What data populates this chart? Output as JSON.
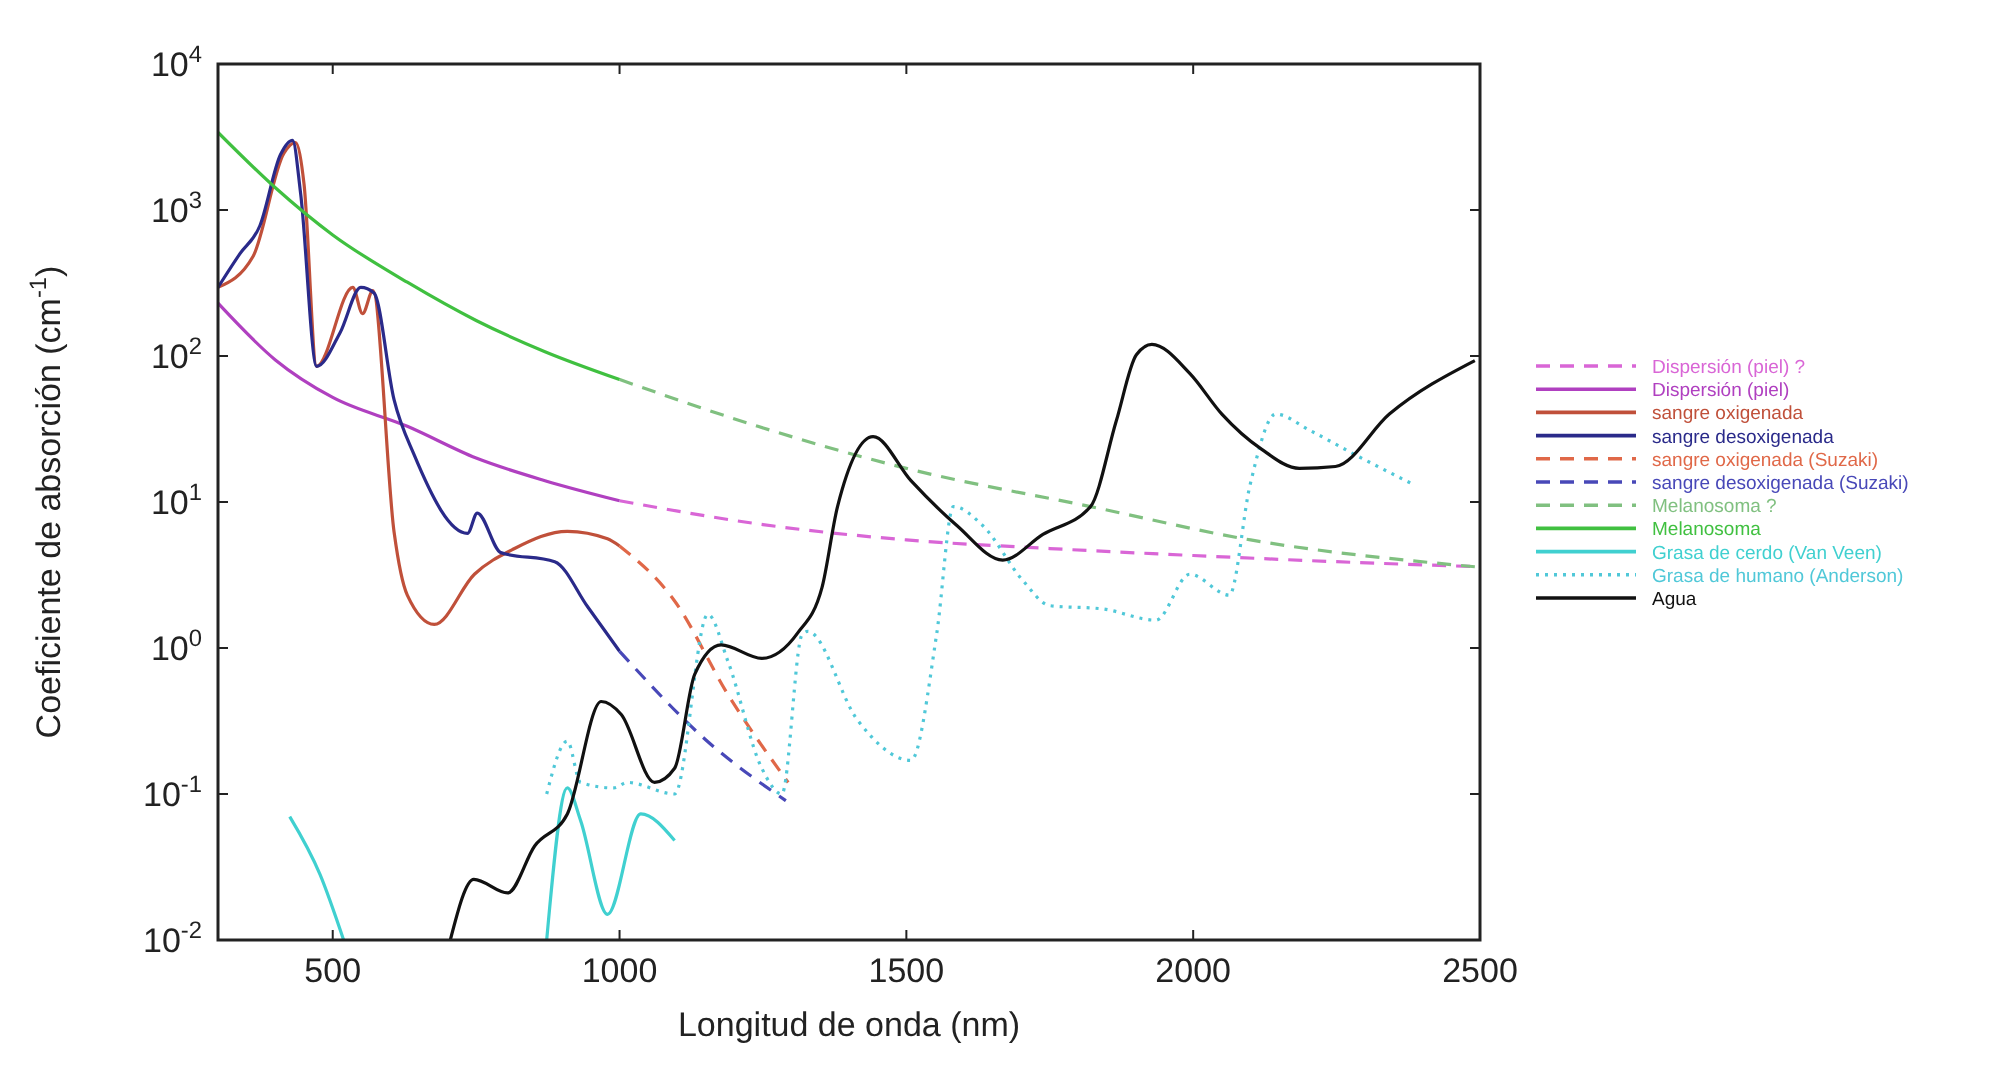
{
  "chart_data": {
    "type": "line",
    "xlabel": "Longitud de onda (nm)",
    "ylabel": "Coeficiente de absorción (cm$^{-1}$)",
    "log": "y",
    "grid": false,
    "legend": "right",
    "marker": "none",
    "xlim": [
      300,
      2500
    ],
    "xticks": [
      500,
      1000,
      1500,
      2000,
      2500
    ],
    "ylim": [
      0.01,
      10000
    ],
    "yticks": [
      {
        "value": 0.01,
        "label": "10$^{-2}$"
      },
      {
        "value": 0.1,
        "label": "10$^{-1}$"
      },
      {
        "value": 1,
        "label": "10$^{0}$"
      },
      {
        "value": 10,
        "label": "10$^{1}$"
      },
      {
        "value": 100,
        "label": "10$^{2}$"
      },
      {
        "value": 1000,
        "label": "10$^{3}$"
      },
      {
        "value": 10000,
        "label": "10$^{4}$"
      }
    ],
    "series": [
      {
        "name": "Dispersión (piel) ?",
        "color": "#d966d6",
        "line_style": "dashed",
        "x": [
          1000,
          1250,
          1500,
          1750,
          2000,
          2250,
          2500
        ],
        "values": [
          10.2,
          7,
          5.5,
          4.8,
          4.3,
          3.9,
          3.6
        ]
      },
      {
        "name": "Dispersión (piel)",
        "color": "#b040c0",
        "line_style": "solid",
        "x": [
          300,
          400,
          500,
          630,
          750,
          870,
          1000
        ],
        "values": [
          230,
          94,
          52,
          33,
          20,
          14,
          10.2
        ]
      },
      {
        "name": "sangre oxigenada",
        "color": "#c0503a",
        "line_style": "solid",
        "x": [
          300,
          361,
          415,
          435,
          450,
          472,
          535,
          552,
          570,
          607,
          630,
          677,
          747,
          817,
          909,
          979,
          1000
        ],
        "values": [
          295,
          480,
          2450,
          2900,
          1500,
          85,
          295,
          195,
          280,
          6.2,
          2.3,
          1.45,
          3.2,
          4.8,
          6.3,
          5.6,
          5
        ]
      },
      {
        "name": "sangre desoxigenada",
        "color": "#2a2a8a",
        "line_style": "solid",
        "x": [
          300,
          338,
          373,
          409,
          430,
          444,
          472,
          513,
          549,
          572,
          607,
          642,
          735,
          752,
          793,
          887,
          945,
          1000
        ],
        "values": [
          295,
          500,
          780,
          2400,
          3000,
          1300,
          85,
          145,
          295,
          270,
          50,
          21,
          6.1,
          8.4,
          4.5,
          3.9,
          1.9,
          0.95
        ]
      },
      {
        "name": "sangre oxigenada (Suzaki)",
        "color": "#e06848",
        "line_style": "dashed",
        "x": [
          1000,
          1096,
          1189,
          1294
        ],
        "values": [
          5,
          2.1,
          0.48,
          0.12
        ]
      },
      {
        "name": "sangre desoxigenada (Suzaki)",
        "color": "#4848b8",
        "line_style": "dashed",
        "x": [
          1000,
          1153,
          1290
        ],
        "values": [
          0.95,
          0.23,
          0.09
        ]
      },
      {
        "name": "Melanosoma ?",
        "color": "#80c080",
        "line_style": "dashed",
        "x": [
          1000,
          1241,
          1500,
          1821,
          2100,
          2491
        ],
        "values": [
          69,
          33,
          17,
          9.3,
          5.5,
          3.6
        ]
      },
      {
        "name": "Melanosoma",
        "color": "#40c040",
        "line_style": "solid",
        "x": [
          300,
          400,
          500,
          630,
          750,
          870,
          1000
        ],
        "values": [
          3400,
          1420,
          675,
          320,
          175,
          107,
          69
        ]
      },
      {
        "name": "Grasa de cerdo (Van Veen)",
        "color": "#40d0d0",
        "line_style": "solid",
        "x": [
          425,
          478,
          519,
          700,
          873,
          909,
          932,
          979,
          1037,
          1096
        ],
        "values": [
          0.07,
          0.028,
          0.01,
          null,
          0.01,
          0.11,
          0.066,
          0.015,
          0.073,
          0.048
        ]
      },
      {
        "name": "Grasa de humano (Anderson)",
        "color": "#50c8d8",
        "line_style": "dotted",
        "x": [
          873,
          909,
          932,
          990,
          1014,
          1096,
          1154,
          1189,
          1248,
          1283,
          1318,
          1328,
          1415,
          1508,
          1553,
          1582,
          1633,
          1703,
          1750,
          1843,
          1935,
          1994,
          2063,
          2099,
          2144,
          2203,
          2283,
          2387
        ],
        "values": [
          0.1,
          0.23,
          0.12,
          0.11,
          0.12,
          0.1,
          1.7,
          0.81,
          0.15,
          0.1,
          1.23,
          1.3,
          0.32,
          0.17,
          1.26,
          9.3,
          6.9,
          2.9,
          1.95,
          1.85,
          1.55,
          3.2,
          2.3,
          13,
          40,
          31,
          21,
          13
        ]
      },
      {
        "name": "Agua",
        "color": "#111111",
        "line_style": "solid",
        "x": [
          705,
          746,
          805,
          852,
          909,
          968,
          1003,
          1061,
          1096,
          1131,
          1177,
          1248,
          1310,
          1353,
          1380,
          1442,
          1508,
          1588,
          1668,
          1738,
          1821,
          1866,
          1901,
          1928,
          1994,
          2050,
          2119,
          2185,
          2248,
          2342,
          2491
        ],
        "values": [
          0.01,
          0.026,
          0.021,
          0.044,
          0.073,
          0.43,
          0.35,
          0.12,
          0.15,
          0.66,
          1.05,
          0.85,
          1.26,
          2.6,
          9.3,
          28,
          14,
          6.9,
          4.0,
          6.0,
          9.3,
          36,
          102,
          120,
          76,
          40,
          23,
          17,
          17.5,
          40,
          93
        ]
      }
    ]
  }
}
